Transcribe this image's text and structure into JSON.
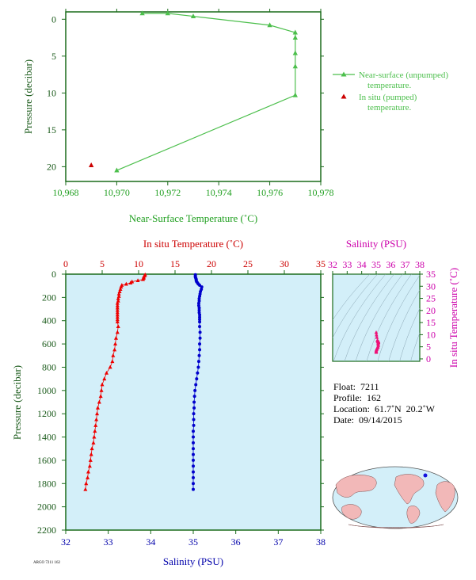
{
  "chart_data": [
    {
      "type": "line",
      "xlabel": "Near-Surface Temperature (˚C)",
      "ylabel": "Pressure (decibar)",
      "xlim": [
        10.968,
        10.978
      ],
      "ylim": [
        22,
        -1
      ],
      "xticks": [
        "10,968",
        "10,970",
        "10,972",
        "10,974",
        "10,976",
        "10,978"
      ],
      "xtick_values": [
        10.968,
        10.97,
        10.972,
        10.974,
        10.976,
        10.978
      ],
      "yticks": [
        "0",
        "5",
        "10",
        "15",
        "20"
      ],
      "ytick_values": [
        0,
        5,
        10,
        15,
        20
      ],
      "series": [
        {
          "name": "Near-surface (unpumped) temperature.",
          "marker": "triangle",
          "color": "#4cbf4c",
          "x": [
            10.971,
            10.972,
            10.973,
            10.976,
            10.977,
            10.977,
            10.977,
            10.977,
            10.977,
            10.97
          ],
          "y": [
            -0.8,
            -0.8,
            -0.4,
            0.8,
            1.8,
            2.5,
            4.6,
            6.4,
            10.3,
            20.5
          ]
        },
        {
          "name": "In situ (pumped) temperature.",
          "marker": "triangle",
          "color": "#cc0000",
          "x": [
            10.969
          ],
          "y": [
            19.8
          ]
        }
      ],
      "legend_position": "right"
    },
    {
      "type": "scatter",
      "xlabel_top": "In situ Temperature (˚C)",
      "xlabel_bottom": "Salinity (PSU)",
      "ylabel": "Pressure (decibar)",
      "temp_lim": [
        0,
        35
      ],
      "sal_lim": [
        32,
        38
      ],
      "ylim": [
        2200,
        0
      ],
      "temp_ticks": [
        "0",
        "5",
        "10",
        "15",
        "20",
        "25",
        "30",
        "35"
      ],
      "temp_tick_values": [
        0,
        5,
        10,
        15,
        20,
        25,
        30,
        35
      ],
      "sal_ticks": [
        "32",
        "33",
        "34",
        "35",
        "36",
        "37",
        "38"
      ],
      "sal_tick_values": [
        32,
        33,
        34,
        35,
        36,
        37,
        38
      ],
      "yticks": [
        "0",
        "200",
        "400",
        "600",
        "800",
        "1000",
        "1200",
        "1400",
        "1600",
        "1800",
        "2000",
        "2200"
      ],
      "ytick_values": [
        0,
        200,
        400,
        600,
        800,
        1000,
        1200,
        1400,
        1600,
        1800,
        2000,
        2200
      ],
      "background": "#d3eff9",
      "temperature": {
        "color": "#ee0000",
        "pressure": [
          5,
          15,
          25,
          35,
          45,
          55,
          65,
          75,
          85,
          95,
          110,
          130,
          150,
          170,
          190,
          210,
          230,
          250,
          270,
          290,
          310,
          330,
          350,
          370,
          390,
          410,
          450,
          500,
          550,
          600,
          650,
          700,
          750,
          800,
          850,
          900,
          950,
          1000,
          1050,
          1100,
          1150,
          1200,
          1250,
          1300,
          1350,
          1400,
          1450,
          1500,
          1550,
          1600,
          1650,
          1700,
          1750,
          1800,
          1850
        ],
        "value": [
          10.9,
          10.8,
          10.7,
          10.7,
          10.6,
          9.9,
          9.1,
          8.9,
          8.3,
          7.7,
          7.6,
          7.5,
          7.4,
          7.3,
          7.3,
          7.2,
          7.2,
          7.1,
          7.1,
          7.1,
          7.1,
          7.1,
          7.1,
          7.1,
          7.1,
          7.1,
          7.2,
          7.1,
          6.9,
          6.8,
          6.7,
          6.5,
          6.4,
          6.1,
          5.6,
          5.3,
          5.0,
          4.9,
          4.8,
          4.6,
          4.4,
          4.3,
          4.2,
          4.1,
          4.0,
          3.9,
          3.8,
          3.6,
          3.5,
          3.4,
          3.3,
          3.1,
          3.0,
          2.8,
          2.7
        ]
      },
      "salinity": {
        "color": "#0000cc",
        "pressure": [
          5,
          15,
          25,
          35,
          45,
          55,
          65,
          75,
          85,
          95,
          110,
          130,
          150,
          170,
          190,
          210,
          230,
          250,
          270,
          290,
          310,
          330,
          350,
          370,
          390,
          410,
          450,
          500,
          550,
          600,
          650,
          700,
          750,
          800,
          850,
          900,
          950,
          1000,
          1050,
          1100,
          1150,
          1200,
          1250,
          1300,
          1350,
          1400,
          1450,
          1500,
          1550,
          1600,
          1650,
          1700,
          1750,
          1800,
          1850
        ],
        "value": [
          35.05,
          35.05,
          35.05,
          35.06,
          35.07,
          35.07,
          35.08,
          35.1,
          35.12,
          35.15,
          35.2,
          35.19,
          35.17,
          35.16,
          35.15,
          35.14,
          35.14,
          35.13,
          35.13,
          35.14,
          35.14,
          35.14,
          35.15,
          35.15,
          35.15,
          35.15,
          35.15,
          35.16,
          35.16,
          35.15,
          35.15,
          35.14,
          35.13,
          35.12,
          35.1,
          35.08,
          35.06,
          35.04,
          35.03,
          35.02,
          35.02,
          35.01,
          35.01,
          35.01,
          35.0,
          35.0,
          35.0,
          35.0,
          35.0,
          35.0,
          35.0,
          35.0,
          35.0,
          35.0,
          35.0
        ]
      }
    },
    {
      "type": "scatter",
      "xlabel": "Salinity (PSU)",
      "ylabel": "In situ Temperature (˚C)",
      "xlim": [
        32,
        38
      ],
      "ylim": [
        -1,
        35
      ],
      "xticks": [
        "32",
        "33",
        "34",
        "35",
        "36",
        "37",
        "38"
      ],
      "xtick_values": [
        32,
        33,
        34,
        35,
        36,
        37,
        38
      ],
      "yticks": [
        "0",
        "5",
        "10",
        "15",
        "20",
        "25",
        "30",
        "35"
      ],
      "ytick_values": [
        0,
        5,
        10,
        15,
        20,
        25,
        30,
        35
      ],
      "color": "#ee1177",
      "x": [
        35.0,
        35.02,
        35.05,
        35.08,
        35.1,
        35.12,
        35.14,
        35.15,
        35.16,
        35.15,
        35.15,
        35.14,
        35.13,
        35.15,
        35.12,
        35.1,
        35.06,
        35.04,
        35.02,
        35.0,
        35.0,
        35.0
      ],
      "y": [
        10.9,
        9.9,
        8.9,
        7.7,
        7.4,
        7.2,
        7.1,
        7.1,
        7.1,
        7.0,
        6.8,
        6.5,
        6.1,
        5.6,
        5.0,
        4.8,
        4.4,
        4.1,
        3.8,
        3.4,
        3.0,
        2.7
      ]
    }
  ],
  "info": {
    "float": "Float:  7211",
    "profile": "Profile:  162",
    "location": "Location:  61.7˚N  20.2˚W",
    "date": "Date:  09/14/2015"
  },
  "footer_note": "ARGO 7211 162"
}
